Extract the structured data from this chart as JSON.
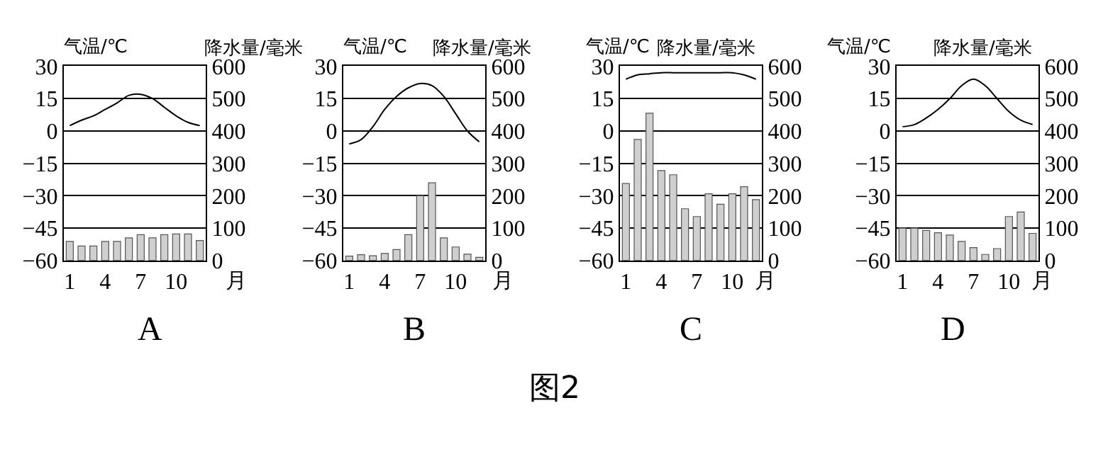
{
  "chart_data": [
    {
      "type": "bar",
      "title": "A",
      "xlabel": "月",
      "ylabel": "气温/℃",
      "y2label": "降水量/毫米",
      "categories": [
        "1",
        null,
        null,
        "4",
        null,
        null,
        "7",
        null,
        null,
        "10",
        null,
        null
      ],
      "ylim": [
        -60,
        30
      ],
      "yticks": [
        {
          "value": -60,
          "label": "−60"
        },
        {
          "value": -45,
          "label": "−45"
        },
        {
          "value": -30,
          "label": "−30"
        },
        {
          "value": -15,
          "label": "−15"
        },
        0,
        15,
        30
      ],
      "y2lim": [
        0,
        600
      ],
      "y2ticks": [
        0,
        100,
        200,
        300,
        400,
        500,
        600
      ],
      "grid": "y",
      "series": [
        {
          "type": "line",
          "color": "#000000",
          "values": [
            2.5,
            5,
            7,
            10,
            13,
            16.5,
            17,
            15,
            11,
            7,
            4,
            2.5
          ]
        },
        {
          "axis": "y2",
          "color": "#cfcfcf",
          "values": [
            59,
            45,
            45,
            59,
            59,
            70,
            80,
            70,
            80,
            82,
            82,
            62
          ]
        }
      ],
      "annotations": [
        "图2"
      ]
    },
    {
      "type": "bar",
      "title": "B",
      "xlabel": "月",
      "ylabel": "气温/℃",
      "y2label": "降水量/毫米",
      "categories": [
        "1",
        null,
        null,
        "4",
        null,
        null,
        "7",
        null,
        null,
        "10",
        null,
        null
      ],
      "ylim": [
        -60,
        30
      ],
      "yticks": [
        {
          "value": -60,
          "label": "−60"
        },
        {
          "value": -45,
          "label": "−45"
        },
        {
          "value": -30,
          "label": "−30"
        },
        {
          "value": -15,
          "label": "−15"
        },
        0,
        15,
        30
      ],
      "y2lim": [
        0,
        600
      ],
      "y2ticks": [
        0,
        100,
        200,
        300,
        400,
        500,
        600
      ],
      "grid": "y",
      "series": [
        {
          "type": "line",
          "color": "#000000",
          "values": [
            -6,
            -4,
            2,
            10,
            16,
            20,
            22,
            21,
            16,
            8,
            0,
            -5
          ]
        },
        {
          "axis": "y2",
          "color": "#cfcfcf",
          "values": [
            14,
            18,
            15,
            22,
            34,
            80,
            200,
            240,
            70,
            42,
            20,
            10
          ]
        }
      ]
    },
    {
      "type": "bar",
      "title": "C",
      "xlabel": "月",
      "ylabel": "气温/℃",
      "y2label": "降水量/毫米",
      "categories": [
        "1",
        null,
        null,
        "4",
        null,
        null,
        "7",
        null,
        null,
        "10",
        null,
        null
      ],
      "ylim": [
        -60,
        30
      ],
      "yticks": [
        {
          "value": -60,
          "label": "−60"
        },
        {
          "value": -45,
          "label": "−45"
        },
        {
          "value": -30,
          "label": "−30"
        },
        {
          "value": -15,
          "label": "−15"
        },
        0,
        15,
        30
      ],
      "y2lim": [
        0,
        600
      ],
      "y2ticks": [
        0,
        100,
        200,
        300,
        400,
        500,
        600
      ],
      "grid": "y",
      "series": [
        {
          "type": "line",
          "color": "#000000",
          "values": [
            24,
            26,
            26.5,
            27,
            27,
            27,
            27,
            27,
            27,
            27,
            26,
            24
          ]
        },
        {
          "axis": "y2",
          "color": "#cfcfcf",
          "values": [
            238,
            374,
            455,
            278,
            265,
            160,
            136,
            206,
            174,
            206,
            228,
            188
          ]
        }
      ]
    },
    {
      "type": "bar",
      "title": "D",
      "xlabel": "月",
      "ylabel": "气温/℃",
      "y2label": "降水量/毫米",
      "categories": [
        "1",
        null,
        null,
        "4",
        null,
        null,
        "7",
        null,
        null,
        "10",
        null,
        null
      ],
      "ylim": [
        -60,
        30
      ],
      "yticks": [
        {
          "value": -60,
          "label": "−60"
        },
        {
          "value": -45,
          "label": "−45"
        },
        {
          "value": -30,
          "label": "−30"
        },
        {
          "value": -15,
          "label": "−15"
        },
        0,
        15,
        30
      ],
      "y2lim": [
        0,
        600
      ],
      "y2ticks": [
        0,
        100,
        200,
        300,
        400,
        500,
        600
      ],
      "grid": "y",
      "series": [
        {
          "type": "line",
          "color": "#000000",
          "values": [
            2,
            3,
            6,
            10,
            15,
            21,
            24,
            21,
            15,
            9,
            5,
            3
          ]
        },
        {
          "axis": "y2",
          "color": "#cfcfcf",
          "values": [
            100,
            100,
            93,
            86,
            79,
            59,
            40,
            19,
            37,
            136,
            150,
            84
          ]
        }
      ]
    }
  ]
}
